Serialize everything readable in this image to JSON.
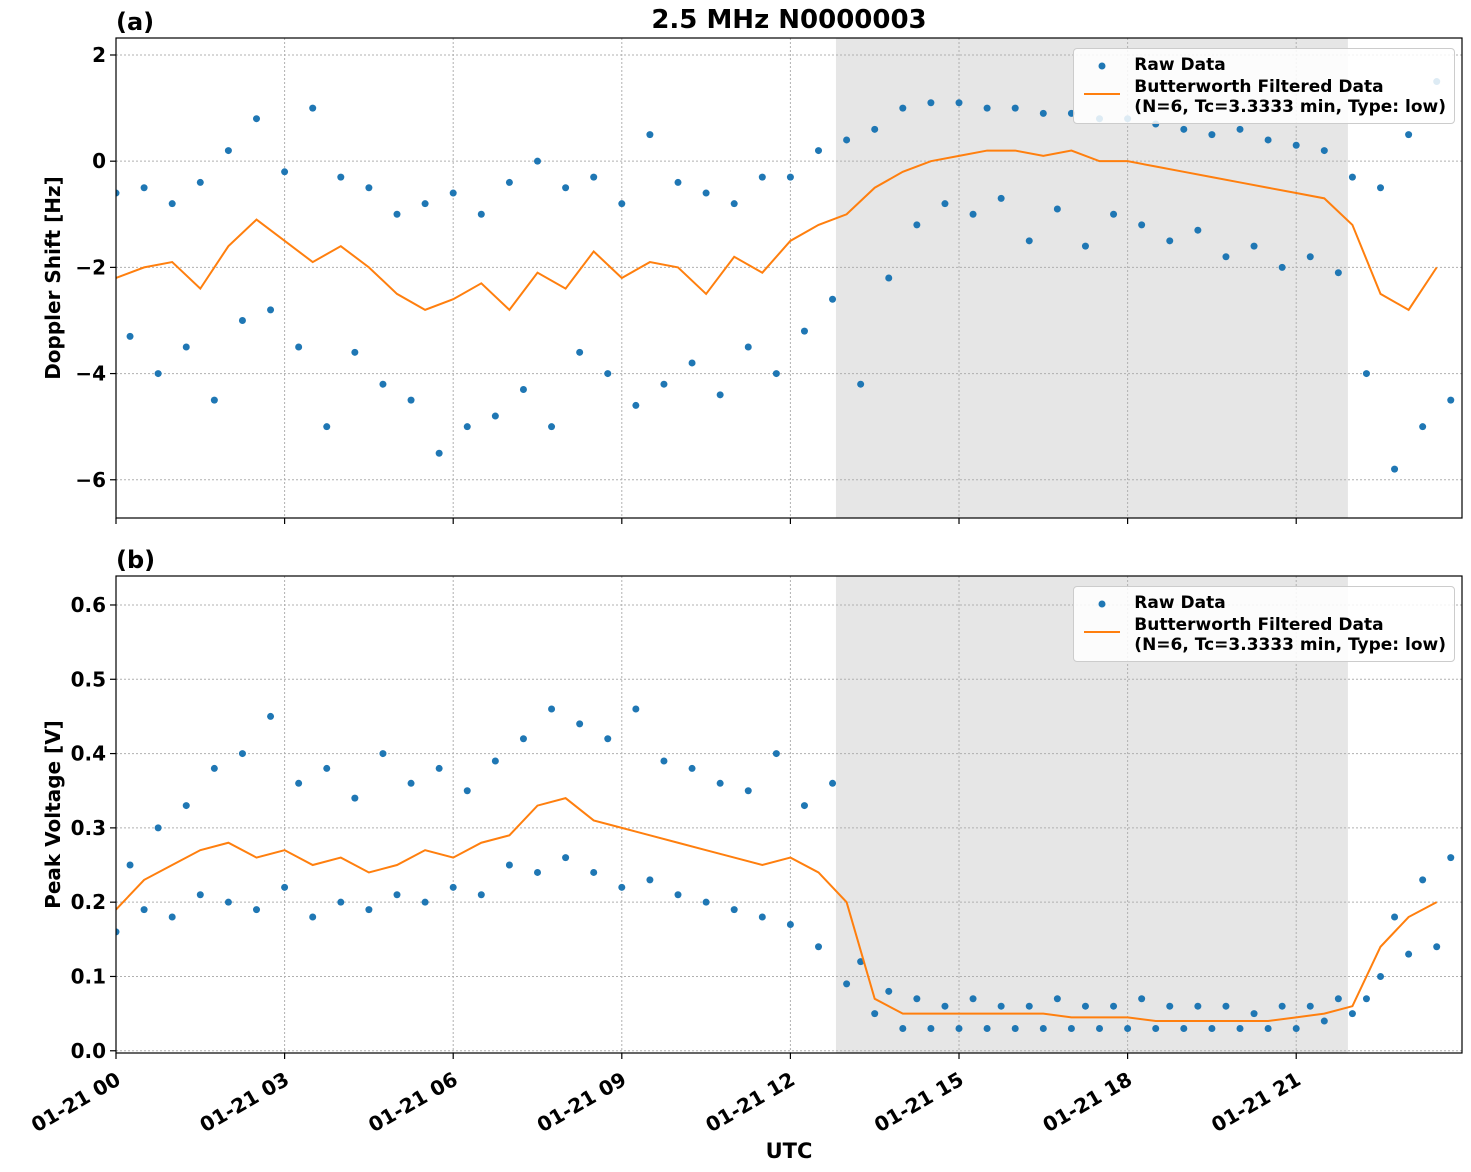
{
  "chart_data": [
    {
      "type": "scatter",
      "title": "2.5 MHz N0000003",
      "panel_label": "(a)",
      "ylabel": "Doppler Shift [Hz]",
      "xlim": [
        0,
        23.95
      ],
      "ylim": [
        -6.72,
        2.32
      ],
      "yticks": [
        {
          "value": -6,
          "label": "−6"
        },
        {
          "value": -4,
          "label": "−4"
        },
        {
          "value": -2,
          "label": "−2"
        },
        0,
        2
      ],
      "grid": true,
      "shade": [
        12.81,
        21.92
      ],
      "legend": "upper right",
      "series": [
        {
          "name": "Raw Data",
          "type": "scatter",
          "color": "#1f77b4",
          "x": [
            0,
            0.25,
            0.5,
            0.75,
            1,
            1.25,
            1.5,
            1.75,
            2,
            2.25,
            2.5,
            2.75,
            3,
            3.25,
            3.5,
            3.75,
            4,
            4.25,
            4.5,
            4.75,
            5,
            5.25,
            5.5,
            5.75,
            6,
            6.25,
            6.5,
            6.75,
            7,
            7.25,
            7.5,
            7.75,
            8,
            8.25,
            8.5,
            8.75,
            9,
            9.25,
            9.5,
            9.75,
            10,
            10.25,
            10.5,
            10.75,
            11,
            11.25,
            11.5,
            11.75,
            12,
            12.25,
            12.5,
            12.75,
            13,
            13.25,
            13.5,
            13.75,
            14,
            14.25,
            14.5,
            14.75,
            15,
            15.25,
            15.5,
            15.75,
            16,
            16.25,
            16.5,
            16.75,
            17,
            17.25,
            17.5,
            17.75,
            18,
            18.25,
            18.5,
            18.75,
            19,
            19.25,
            19.5,
            19.75,
            20,
            20.25,
            20.5,
            20.75,
            21,
            21.25,
            21.5,
            21.75,
            22,
            22.25,
            22.5,
            22.75,
            23,
            23.25,
            23.5,
            23.75
          ],
          "values": [
            -0.6,
            -3.3,
            -0.5,
            -4.0,
            -0.8,
            -3.5,
            -0.4,
            -4.5,
            0.2,
            -3.0,
            0.8,
            -2.8,
            -0.2,
            -3.5,
            1.0,
            -5.0,
            -0.3,
            -3.6,
            -0.5,
            -4.2,
            -1.0,
            -4.5,
            -0.8,
            -5.5,
            -0.6,
            -5.0,
            -1.0,
            -4.8,
            -0.4,
            -4.3,
            0.0,
            -5.0,
            -0.5,
            -3.6,
            -0.3,
            -4.0,
            -0.8,
            -4.6,
            0.5,
            -4.2,
            -0.4,
            -3.8,
            -0.6,
            -4.4,
            -0.8,
            -3.5,
            -0.3,
            -4.0,
            -0.3,
            -3.2,
            0.2,
            -2.6,
            0.4,
            -4.2,
            0.6,
            -2.2,
            1.0,
            -1.2,
            1.1,
            -0.8,
            1.1,
            -1.0,
            1.0,
            -0.7,
            1.0,
            -1.5,
            0.9,
            -0.9,
            0.9,
            -1.6,
            0.8,
            -1.0,
            0.8,
            -1.2,
            0.7,
            -1.5,
            0.6,
            -1.3,
            0.5,
            -1.8,
            0.6,
            -1.6,
            0.4,
            -2.0,
            0.3,
            -1.8,
            0.2,
            -2.1,
            -0.3,
            -4.0,
            -0.5,
            -5.8,
            0.5,
            -5.0,
            1.5,
            -4.5
          ]
        },
        {
          "name": "Butterworth Filtered Data\n(N=6, Tc=3.3333 min, Type: low)",
          "type": "line",
          "color": "#ff7f0e",
          "x": [
            0,
            0.5,
            1,
            1.5,
            2,
            2.5,
            3,
            3.5,
            4,
            4.5,
            5,
            5.5,
            6,
            6.5,
            7,
            7.5,
            8,
            8.5,
            9,
            9.5,
            10,
            10.5,
            11,
            11.5,
            12,
            12.5,
            13,
            13.5,
            14,
            14.5,
            15,
            15.5,
            16,
            16.5,
            17,
            17.5,
            18,
            18.5,
            19,
            19.5,
            20,
            20.5,
            21,
            21.5,
            22,
            22.5,
            23,
            23.5
          ],
          "values": [
            -2.2,
            -2.0,
            -1.9,
            -2.4,
            -1.6,
            -1.1,
            -1.5,
            -1.9,
            -1.6,
            -2.0,
            -2.5,
            -2.8,
            -2.6,
            -2.3,
            -2.8,
            -2.1,
            -2.4,
            -1.7,
            -2.2,
            -1.9,
            -2.0,
            -2.5,
            -1.8,
            -2.1,
            -1.5,
            -1.2,
            -1.0,
            -0.5,
            -0.2,
            0.0,
            0.1,
            0.2,
            0.2,
            0.1,
            0.2,
            0.0,
            0.0,
            -0.1,
            -0.2,
            -0.3,
            -0.4,
            -0.5,
            -0.6,
            -0.7,
            -1.2,
            -2.5,
            -2.8,
            -2.0
          ]
        }
      ]
    },
    {
      "type": "scatter",
      "panel_label": "(b)",
      "ylabel": "Peak Voltage [V]",
      "xlabel": "UTC",
      "xlim": [
        0,
        23.95
      ],
      "ylim": [
        -0.003,
        0.639
      ],
      "xticks": [
        {
          "value": 0,
          "label": "01-21 00"
        },
        {
          "value": 3,
          "label": "01-21 03"
        },
        {
          "value": 6,
          "label": "01-21 06"
        },
        {
          "value": 9,
          "label": "01-21 09"
        },
        {
          "value": 12,
          "label": "01-21 12"
        },
        {
          "value": 15,
          "label": "01-21 15"
        },
        {
          "value": 18,
          "label": "01-21 18"
        },
        {
          "value": 21,
          "label": "01-21 21"
        }
      ],
      "yticks": [
        {
          "value": 0,
          "label": "0.0"
        },
        0.1,
        0.2,
        0.3,
        0.4,
        0.5,
        0.6
      ],
      "grid": true,
      "shade": [
        12.81,
        21.92
      ],
      "legend": "upper right",
      "series": [
        {
          "name": "Raw Data",
          "type": "scatter",
          "color": "#1f77b4",
          "x": [
            0,
            0.25,
            0.5,
            0.75,
            1,
            1.25,
            1.5,
            1.75,
            2,
            2.25,
            2.5,
            2.75,
            3,
            3.25,
            3.5,
            3.75,
            4,
            4.25,
            4.5,
            4.75,
            5,
            5.25,
            5.5,
            5.75,
            6,
            6.25,
            6.5,
            6.75,
            7,
            7.25,
            7.5,
            7.75,
            8,
            8.25,
            8.5,
            8.75,
            9,
            9.25,
            9.5,
            9.75,
            10,
            10.25,
            10.5,
            10.75,
            11,
            11.25,
            11.5,
            11.75,
            12,
            12.25,
            12.5,
            12.75,
            13,
            13.25,
            13.5,
            13.75,
            14,
            14.25,
            14.5,
            14.75,
            15,
            15.25,
            15.5,
            15.75,
            16,
            16.25,
            16.5,
            16.75,
            17,
            17.25,
            17.5,
            17.75,
            18,
            18.25,
            18.5,
            18.75,
            19,
            19.25,
            19.5,
            19.75,
            20,
            20.25,
            20.5,
            20.75,
            21,
            21.25,
            21.5,
            21.75,
            22,
            22.25,
            22.5,
            22.75,
            23,
            23.25,
            23.5,
            23.75
          ],
          "values": [
            0.16,
            0.25,
            0.19,
            0.3,
            0.18,
            0.33,
            0.21,
            0.38,
            0.2,
            0.4,
            0.19,
            0.45,
            0.22,
            0.36,
            0.18,
            0.38,
            0.2,
            0.34,
            0.19,
            0.4,
            0.21,
            0.36,
            0.2,
            0.38,
            0.22,
            0.35,
            0.21,
            0.39,
            0.25,
            0.42,
            0.24,
            0.46,
            0.26,
            0.44,
            0.24,
            0.42,
            0.22,
            0.46,
            0.23,
            0.39,
            0.21,
            0.38,
            0.2,
            0.36,
            0.19,
            0.35,
            0.18,
            0.4,
            0.17,
            0.33,
            0.14,
            0.36,
            0.09,
            0.12,
            0.05,
            0.08,
            0.03,
            0.07,
            0.03,
            0.06,
            0.03,
            0.07,
            0.03,
            0.06,
            0.03,
            0.06,
            0.03,
            0.07,
            0.03,
            0.06,
            0.03,
            0.06,
            0.03,
            0.07,
            0.03,
            0.06,
            0.03,
            0.06,
            0.03,
            0.06,
            0.03,
            0.05,
            0.03,
            0.06,
            0.03,
            0.06,
            0.04,
            0.07,
            0.05,
            0.07,
            0.1,
            0.18,
            0.13,
            0.23,
            0.14,
            0.26
          ]
        },
        {
          "name": "Butterworth Filtered Data\n(N=6, Tc=3.3333 min, Type: low)",
          "type": "line",
          "color": "#ff7f0e",
          "x": [
            0,
            0.5,
            1,
            1.5,
            2,
            2.5,
            3,
            3.5,
            4,
            4.5,
            5,
            5.5,
            6,
            6.5,
            7,
            7.5,
            8,
            8.5,
            9,
            9.5,
            10,
            10.5,
            11,
            11.5,
            12,
            12.5,
            13,
            13.5,
            14,
            14.5,
            15,
            15.5,
            16,
            16.5,
            17,
            17.5,
            18,
            18.5,
            19,
            19.5,
            20,
            20.5,
            21,
            21.5,
            22,
            22.5,
            23,
            23.5
          ],
          "values": [
            0.19,
            0.23,
            0.25,
            0.27,
            0.28,
            0.26,
            0.27,
            0.25,
            0.26,
            0.24,
            0.25,
            0.27,
            0.26,
            0.28,
            0.29,
            0.33,
            0.34,
            0.31,
            0.3,
            0.29,
            0.28,
            0.27,
            0.26,
            0.25,
            0.26,
            0.24,
            0.2,
            0.07,
            0.05,
            0.05,
            0.05,
            0.05,
            0.05,
            0.05,
            0.045,
            0.045,
            0.045,
            0.04,
            0.04,
            0.04,
            0.04,
            0.04,
            0.045,
            0.05,
            0.06,
            0.14,
            0.18,
            0.2
          ]
        }
      ]
    }
  ]
}
